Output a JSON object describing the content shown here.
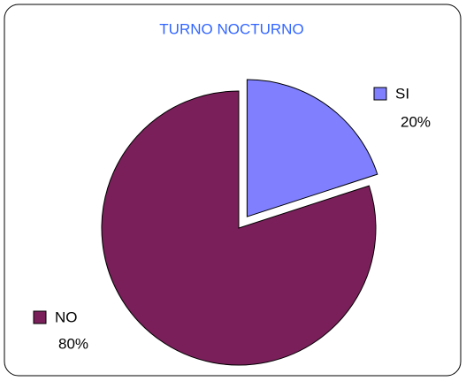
{
  "chart_data": {
    "type": "pie",
    "title": "TURNO NOCTURNO",
    "categories": [
      "SI",
      "NO"
    ],
    "values": [
      20,
      80
    ],
    "value_labels": [
      "20%",
      "80%"
    ],
    "colors": [
      "#8080ff",
      "#7a1f5a"
    ],
    "exploded": [
      true,
      false
    ]
  }
}
